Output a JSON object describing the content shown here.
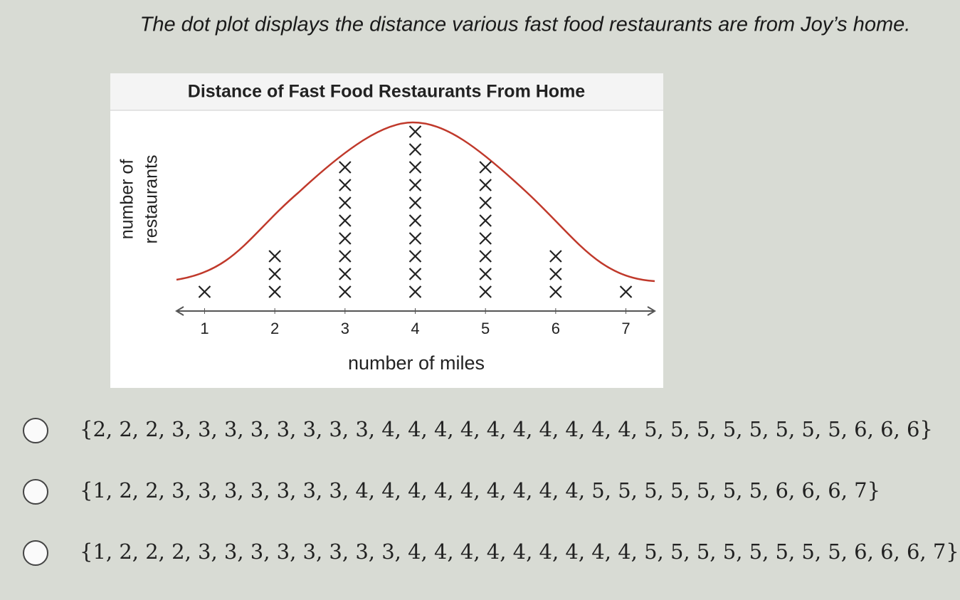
{
  "question": "The dot plot displays the distance various fast food restaurants are from Joy’s home.",
  "chart_data": {
    "type": "dot",
    "title": "Distance of Fast Food Restaurants From Home",
    "x_label": "number of miles",
    "y_label": [
      "number of",
      "restaurants"
    ],
    "x": [
      1,
      2,
      3,
      4,
      5,
      6,
      7
    ],
    "values": [
      1,
      3,
      8,
      10,
      8,
      3,
      1
    ],
    "xlim": [
      0.6,
      7.4
    ],
    "xticks": [
      1,
      2,
      3,
      4,
      5,
      6,
      7
    ],
    "color": "#222222",
    "curve_color": "#c0392b"
  },
  "options": [
    "{2, 2, 2, 3, 3, 3, 3, 3, 3, 3, 3, 4, 4, 4, 4, 4, 4, 4, 4, 4, 4, 5, 5, 5, 5, 5, 5, 5, 5, 6, 6, 6}",
    "{1, 2, 2, 3, 3, 3, 3, 3, 3, 3, 4, 4, 4, 4, 4, 4, 4, 4, 4, 5, 5, 5, 5, 5, 5, 5, 6, 6, 6, 7}",
    "{1, 2, 2, 2, 3, 3, 3, 3, 3, 3, 3, 3, 4, 4, 4, 4, 4, 4, 4, 4, 4, 5, 5, 5, 5, 5, 5, 5, 5, 6, 6, 6, 7}"
  ]
}
